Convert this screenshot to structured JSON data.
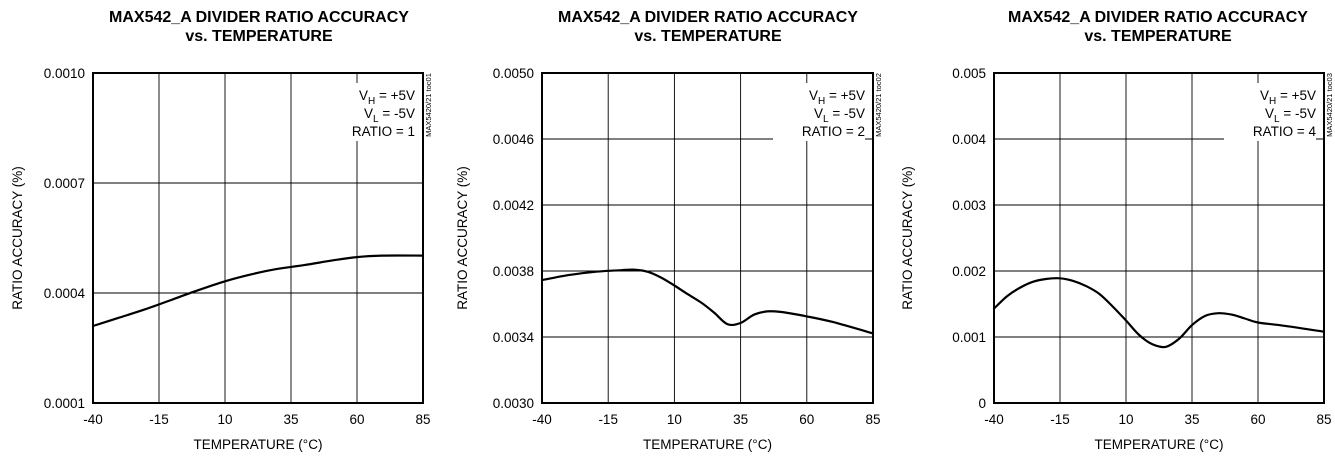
{
  "chart_data": [
    {
      "type": "line",
      "title": "MAX542_A DIVIDER RATIO ACCURACY",
      "subtitle": "vs. TEMPERATURE",
      "xlabel": "TEMPERATURE (°C)",
      "ylabel": "RATIO ACCURACY (%)",
      "xlim": [
        -40,
        85
      ],
      "ylim": [
        0.0001,
        0.001
      ],
      "xticks": [
        -40,
        -15,
        10,
        35,
        60,
        85
      ],
      "xtick_labels": [
        "-40",
        "-15",
        "10",
        "35",
        "60",
        "85"
      ],
      "yticks": [
        0.0001,
        0.0004,
        0.0007,
        0.001
      ],
      "ytick_labels": [
        "0.0001",
        "0.0004",
        "0.0007",
        "0.0010"
      ],
      "grid": true,
      "annotations": {
        "vh": {
          "main": "V",
          "sub": "H",
          "rest": " = +5V"
        },
        "vl": {
          "main": "V",
          "sub": "L",
          "rest": " = -5V"
        },
        "ratio": "RATIO = 1",
        "code": "MAX5420/21 toc01"
      },
      "series": [
        {
          "x": [
            -40,
            -30,
            -20,
            -10,
            0,
            10,
            20,
            30,
            40,
            50,
            60,
            70,
            85
          ],
          "values": [
            0.00031,
            0.000333,
            0.000356,
            0.000382,
            0.000408,
            0.000432,
            0.000451,
            0.000466,
            0.000476,
            0.000488,
            0.000498,
            0.000502,
            0.000502
          ]
        }
      ]
    },
    {
      "type": "line",
      "title": "MAX542_A DIVIDER RATIO ACCURACY",
      "subtitle": "vs. TEMPERATURE",
      "xlabel": "TEMPERATURE (°C)",
      "ylabel": "RATIO ACCURACY (%)",
      "xlim": [
        -40,
        85
      ],
      "ylim": [
        0.003,
        0.005
      ],
      "xticks": [
        -40,
        -15,
        10,
        35,
        60,
        85
      ],
      "xtick_labels": [
        "-40",
        "-15",
        "10",
        "35",
        "60",
        "85"
      ],
      "yticks": [
        0.003,
        0.0034,
        0.0038,
        0.0042,
        0.0046,
        0.005
      ],
      "ytick_labels": [
        "0.0030",
        "0.0034",
        "0.0038",
        "0.0042",
        "0.0046",
        "0.0050"
      ],
      "grid": true,
      "annotations": {
        "vh": {
          "main": "V",
          "sub": "H",
          "rest": " = +5V"
        },
        "vl": {
          "main": "V",
          "sub": "L",
          "rest": " = -5V"
        },
        "ratio": "RATIO = 2",
        "code": "MAX5420/21 toc02"
      },
      "series": [
        {
          "x": [
            -40,
            -30,
            -20,
            -10,
            -5,
            0,
            5,
            10,
            15,
            20,
            25,
            30,
            35,
            40,
            45,
            50,
            60,
            70,
            85
          ],
          "values": [
            0.003745,
            0.003775,
            0.003795,
            0.003805,
            0.003808,
            0.003795,
            0.00376,
            0.003712,
            0.00366,
            0.00361,
            0.003548,
            0.003478,
            0.003485,
            0.003535,
            0.003555,
            0.003552,
            0.003525,
            0.00349,
            0.003422
          ]
        }
      ]
    },
    {
      "type": "line",
      "title": "MAX542_A DIVIDER RATIO ACCURACY",
      "subtitle": "vs. TEMPERATURE",
      "xlabel": "TEMPERATURE (°C)",
      "ylabel": "RATIO ACCURACY (%)",
      "xlim": [
        -40,
        85
      ],
      "ylim": [
        0,
        0.005
      ],
      "xticks": [
        -40,
        -15,
        10,
        35,
        60,
        85
      ],
      "xtick_labels": [
        "-40",
        "-15",
        "10",
        "35",
        "60",
        "85"
      ],
      "yticks": [
        0,
        0.001,
        0.002,
        0.003,
        0.004,
        0.005
      ],
      "ytick_labels": [
        "0",
        "0.001",
        "0.002",
        "0.003",
        "0.004",
        "0.005"
      ],
      "grid": true,
      "annotations": {
        "vh": {
          "main": "V",
          "sub": "H",
          "rest": " = +5V"
        },
        "vl": {
          "main": "V",
          "sub": "L",
          "rest": " = -5V"
        },
        "ratio": "RATIO = 4",
        "code": "MAX5420/21 toc03"
      },
      "series": [
        {
          "x": [
            -40,
            -35,
            -30,
            -25,
            -20,
            -15,
            -10,
            -5,
            0,
            5,
            10,
            15,
            20,
            25,
            30,
            35,
            40,
            45,
            50,
            55,
            60,
            70,
            85
          ],
          "values": [
            0.00143,
            0.00162,
            0.00175,
            0.00184,
            0.00188,
            0.00189,
            0.00185,
            0.00177,
            0.00165,
            0.00146,
            0.00125,
            0.00103,
            0.00089,
            0.00085,
            0.00097,
            0.00118,
            0.00132,
            0.00136,
            0.00134,
            0.00128,
            0.00122,
            0.00117,
            0.00108
          ]
        }
      ]
    }
  ]
}
